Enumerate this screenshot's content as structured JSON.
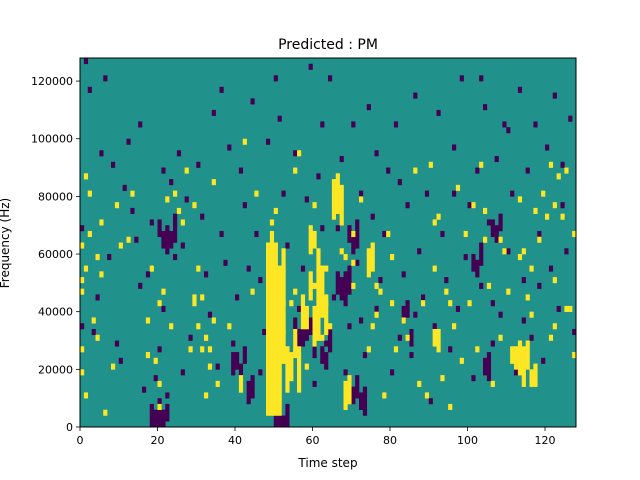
{
  "chart_data": {
    "type": "heatmap",
    "title": "Predicted : PM",
    "xlabel": "Time step",
    "ylabel": "Frequency (Hz)",
    "xlim": [
      0,
      128
    ],
    "ylim": [
      0,
      128000
    ],
    "x_ticks": [
      0,
      20,
      40,
      60,
      80,
      100,
      120
    ],
    "y_ticks": [
      0,
      20000,
      40000,
      60000,
      80000,
      100000,
      120000
    ],
    "y_tick_labels": [
      "0",
      "20000",
      "40000",
      "60000",
      "80000",
      "100000",
      "120000"
    ],
    "grid": false,
    "legend": "none",
    "colormap": "viridis",
    "values": [
      -1,
      0,
      1
    ],
    "colors": {
      "-1": "#440154",
      "0": "#21918c",
      "1": "#fde725"
    },
    "background_value": 0,
    "n_time_steps": 128,
    "n_frequency_bins": 64,
    "bin_width_hz": 2000,
    "cells_high": [
      [
        0,
        9
      ],
      [
        0,
        13
      ],
      [
        0,
        23
      ],
      [
        0,
        25
      ],
      [
        0,
        31
      ],
      [
        1,
        43
      ],
      [
        1,
        27
      ],
      [
        1,
        5
      ],
      [
        2,
        40
      ],
      [
        2,
        33
      ],
      [
        3,
        18
      ],
      [
        4,
        29
      ],
      [
        4,
        15
      ],
      [
        5,
        35
      ],
      [
        5,
        26
      ],
      [
        6,
        2
      ],
      [
        8,
        10
      ],
      [
        9,
        38
      ],
      [
        10,
        31
      ],
      [
        12,
        32
      ],
      [
        13,
        40
      ],
      [
        17,
        12
      ],
      [
        17,
        18
      ],
      [
        18,
        27
      ],
      [
        19,
        11
      ],
      [
        20,
        21
      ],
      [
        20,
        7
      ],
      [
        20,
        3
      ],
      [
        21,
        23
      ],
      [
        22,
        39
      ],
      [
        23,
        17
      ],
      [
        24,
        40
      ],
      [
        25,
        37
      ],
      [
        26,
        35
      ],
      [
        27,
        44
      ],
      [
        28,
        13
      ],
      [
        29,
        38
      ],
      [
        29,
        22
      ],
      [
        29,
        21
      ],
      [
        30,
        17
      ],
      [
        30,
        27
      ],
      [
        31,
        22
      ],
      [
        31,
        13
      ],
      [
        32,
        15
      ],
      [
        32,
        5
      ],
      [
        33,
        13
      ],
      [
        33,
        10
      ],
      [
        34,
        42
      ],
      [
        34,
        18
      ],
      [
        35,
        7
      ],
      [
        38,
        17
      ],
      [
        42,
        49
      ],
      [
        44,
        23
      ],
      [
        45,
        40
      ],
      [
        49,
        35
      ],
      [
        50,
        37
      ],
      [
        50,
        31
      ],
      [
        52,
        21
      ],
      [
        52,
        16
      ],
      [
        53,
        13
      ],
      [
        54,
        21
      ],
      [
        55,
        23
      ],
      [
        55,
        44
      ],
      [
        56,
        47
      ],
      [
        58,
        10
      ],
      [
        60,
        38
      ],
      [
        60,
        31
      ],
      [
        60,
        24
      ],
      [
        62,
        15
      ],
      [
        63,
        21
      ],
      [
        63,
        27
      ],
      [
        64,
        17
      ],
      [
        66,
        40
      ],
      [
        67,
        30
      ],
      [
        68,
        29
      ],
      [
        70,
        33
      ],
      [
        70,
        28
      ],
      [
        70,
        24
      ],
      [
        72,
        39
      ],
      [
        74,
        13
      ],
      [
        75,
        17
      ],
      [
        76,
        19
      ],
      [
        76,
        24
      ],
      [
        77,
        23
      ],
      [
        78,
        5
      ],
      [
        79,
        33
      ],
      [
        80,
        29
      ],
      [
        80,
        21
      ],
      [
        81,
        13
      ],
      [
        83,
        18
      ],
      [
        84,
        15
      ],
      [
        86,
        44
      ],
      [
        87,
        7
      ],
      [
        88,
        21
      ],
      [
        89,
        5
      ],
      [
        90,
        45
      ],
      [
        91,
        35
      ],
      [
        91,
        27
      ],
      [
        92,
        36
      ],
      [
        93,
        8
      ],
      [
        94,
        23
      ],
      [
        95,
        21
      ],
      [
        95,
        3
      ],
      [
        96,
        17
      ],
      [
        97,
        41
      ],
      [
        98,
        11
      ],
      [
        99,
        33
      ],
      [
        100,
        21
      ],
      [
        101,
        38
      ],
      [
        102,
        13
      ],
      [
        103,
        45
      ],
      [
        104,
        32
      ],
      [
        104,
        37
      ],
      [
        105,
        24
      ],
      [
        106,
        7
      ],
      [
        108,
        15
      ],
      [
        108,
        32
      ],
      [
        109,
        30
      ],
      [
        110,
        23
      ],
      [
        113,
        39
      ],
      [
        113,
        29
      ],
      [
        114,
        30
      ],
      [
        115,
        22
      ],
      [
        116,
        19
      ],
      [
        116,
        27
      ],
      [
        117,
        37
      ],
      [
        118,
        32
      ],
      [
        119,
        40
      ],
      [
        120,
        36
      ],
      [
        121,
        15
      ],
      [
        121,
        45
      ],
      [
        122,
        17
      ],
      [
        122,
        25
      ],
      [
        122,
        38
      ],
      [
        123,
        43
      ],
      [
        124,
        36
      ],
      [
        125,
        44
      ],
      [
        125,
        20
      ],
      [
        126,
        20
      ],
      [
        127,
        12
      ],
      [
        127,
        33
      ]
    ],
    "runs_high": [
      [
        48,
        2,
        31
      ],
      [
        49,
        2,
        33
      ],
      [
        50,
        2,
        31
      ],
      [
        51,
        2,
        27
      ],
      [
        52,
        11,
        30
      ],
      [
        53,
        6,
        12
      ],
      [
        54,
        8,
        12
      ],
      [
        55,
        12,
        16
      ],
      [
        56,
        6,
        13
      ],
      [
        57,
        17,
        22
      ],
      [
        58,
        17,
        20
      ],
      [
        59,
        22,
        26
      ],
      [
        60,
        14,
        20
      ],
      [
        61,
        15,
        30
      ],
      [
        62,
        19,
        27
      ],
      [
        63,
        16,
        22
      ],
      [
        65,
        36,
        42
      ],
      [
        66,
        37,
        43
      ],
      [
        67,
        35,
        41
      ],
      [
        50,
        14,
        16
      ],
      [
        49,
        18,
        20
      ],
      [
        91,
        14,
        16
      ],
      [
        92,
        13,
        16
      ],
      [
        111,
        11,
        13
      ],
      [
        112,
        10,
        13
      ],
      [
        113,
        9,
        14
      ],
      [
        114,
        7,
        13
      ],
      [
        115,
        10,
        14
      ],
      [
        74,
        26,
        30
      ],
      [
        75,
        27,
        31
      ],
      [
        59,
        30,
        34
      ],
      [
        60,
        32,
        33
      ],
      [
        68,
        3,
        7
      ],
      [
        69,
        4,
        8
      ],
      [
        116,
        7,
        9
      ],
      [
        117,
        7,
        10
      ],
      [
        41,
        6,
        8
      ]
    ],
    "cells_low": [
      [
        0,
        17
      ],
      [
        0,
        34
      ],
      [
        1,
        63
      ],
      [
        2,
        58
      ],
      [
        3,
        16
      ],
      [
        5,
        47
      ],
      [
        6,
        60
      ],
      [
        10,
        11
      ],
      [
        11,
        41
      ],
      [
        12,
        49
      ],
      [
        13,
        37
      ],
      [
        14,
        32
      ],
      [
        15,
        24
      ],
      [
        16,
        6
      ],
      [
        17,
        26
      ],
      [
        18,
        35
      ],
      [
        19,
        8
      ],
      [
        20,
        13
      ],
      [
        21,
        20
      ],
      [
        22,
        5
      ],
      [
        23,
        42
      ],
      [
        24,
        29
      ],
      [
        25,
        47
      ],
      [
        26,
        31
      ],
      [
        27,
        39
      ],
      [
        28,
        15
      ],
      [
        30,
        45
      ],
      [
        32,
        26
      ],
      [
        33,
        19
      ],
      [
        34,
        54
      ],
      [
        35,
        10
      ],
      [
        36,
        33
      ],
      [
        37,
        28
      ],
      [
        38,
        48
      ],
      [
        39,
        14
      ],
      [
        40,
        22
      ],
      [
        41,
        44
      ],
      [
        42,
        38
      ],
      [
        43,
        27
      ],
      [
        44,
        56
      ],
      [
        45,
        33
      ],
      [
        46,
        9
      ],
      [
        47,
        16
      ],
      [
        48,
        49
      ],
      [
        50,
        60
      ],
      [
        51,
        53
      ],
      [
        52,
        40
      ],
      [
        53,
        31
      ],
      [
        54,
        12
      ],
      [
        55,
        47
      ],
      [
        56,
        20
      ],
      [
        57,
        27
      ],
      [
        58,
        39
      ],
      [
        59,
        62
      ],
      [
        60,
        7
      ],
      [
        61,
        43
      ],
      [
        62,
        52
      ],
      [
        63,
        14
      ],
      [
        64,
        60
      ],
      [
        65,
        22
      ],
      [
        66,
        34
      ],
      [
        67,
        46
      ],
      [
        68,
        9
      ],
      [
        69,
        17
      ],
      [
        70,
        52
      ],
      [
        71,
        28
      ],
      [
        72,
        40
      ],
      [
        73,
        12
      ],
      [
        74,
        55
      ],
      [
        75,
        36
      ],
      [
        76,
        20
      ],
      [
        77,
        25
      ],
      [
        78,
        33
      ],
      [
        79,
        44
      ],
      [
        80,
        9
      ],
      [
        81,
        52
      ],
      [
        82,
        15
      ],
      [
        83,
        26
      ],
      [
        84,
        38
      ],
      [
        85,
        12
      ],
      [
        86,
        57
      ],
      [
        87,
        30
      ],
      [
        88,
        22
      ],
      [
        89,
        40
      ],
      [
        90,
        4
      ],
      [
        91,
        17
      ],
      [
        92,
        54
      ],
      [
        93,
        33
      ],
      [
        94,
        25
      ],
      [
        95,
        13
      ],
      [
        96,
        48
      ],
      [
        97,
        20
      ],
      [
        98,
        60
      ],
      [
        99,
        29
      ],
      [
        100,
        38
      ],
      [
        101,
        8
      ],
      [
        102,
        44
      ],
      [
        103,
        24
      ],
      [
        104,
        55
      ],
      [
        105,
        35
      ],
      [
        106,
        14
      ],
      [
        107,
        46
      ],
      [
        108,
        19
      ],
      [
        109,
        52
      ],
      [
        110,
        30
      ],
      [
        111,
        40
      ],
      [
        112,
        9
      ],
      [
        113,
        58
      ],
      [
        114,
        25
      ],
      [
        115,
        44
      ],
      [
        116,
        15
      ],
      [
        117,
        52
      ],
      [
        118,
        33
      ],
      [
        119,
        11
      ],
      [
        120,
        48
      ],
      [
        121,
        27
      ],
      [
        122,
        57
      ],
      [
        123,
        20
      ],
      [
        124,
        38
      ],
      [
        125,
        30
      ],
      [
        126,
        53
      ],
      [
        127,
        16
      ],
      [
        4,
        22
      ],
      [
        7,
        29
      ],
      [
        8,
        45
      ],
      [
        9,
        14
      ],
      [
        15,
        52
      ],
      [
        21,
        44
      ],
      [
        26,
        9
      ],
      [
        31,
        36
      ],
      [
        36,
        58
      ],
      [
        46,
        25
      ],
      [
        58,
        18
      ],
      [
        62,
        34
      ],
      [
        72,
        18
      ],
      [
        76,
        47
      ],
      [
        82,
        42
      ],
      [
        86,
        19
      ],
      [
        96,
        40
      ],
      [
        103,
        60
      ],
      [
        106,
        21
      ],
      [
        110,
        51
      ],
      [
        114,
        18
      ],
      [
        118,
        24
      ],
      [
        124,
        45
      ]
    ],
    "runs_low": [
      [
        18,
        0,
        3
      ],
      [
        19,
        0,
        2
      ],
      [
        20,
        0,
        4
      ],
      [
        21,
        0,
        2
      ],
      [
        22,
        1,
        3
      ],
      [
        55,
        14,
        18
      ],
      [
        56,
        13,
        16
      ],
      [
        57,
        14,
        19
      ],
      [
        58,
        15,
        17
      ],
      [
        59,
        16,
        18
      ],
      [
        60,
        12,
        14
      ],
      [
        61,
        17,
        19
      ],
      [
        62,
        11,
        13
      ],
      [
        63,
        10,
        12
      ],
      [
        64,
        13,
        16
      ],
      [
        66,
        23,
        26
      ],
      [
        67,
        22,
        25
      ],
      [
        68,
        21,
        26
      ],
      [
        69,
        23,
        27
      ],
      [
        70,
        4,
        6
      ],
      [
        71,
        5,
        8
      ],
      [
        72,
        3,
        5
      ],
      [
        73,
        2,
        6
      ],
      [
        39,
        9,
        12
      ],
      [
        40,
        10,
        12
      ],
      [
        41,
        9,
        10
      ],
      [
        42,
        11,
        13
      ],
      [
        43,
        4,
        7
      ],
      [
        44,
        5,
        8
      ],
      [
        49,
        3,
        5
      ],
      [
        50,
        0,
        2
      ],
      [
        51,
        0,
        3
      ],
      [
        52,
        0,
        1
      ],
      [
        53,
        0,
        3
      ],
      [
        83,
        18,
        20
      ],
      [
        84,
        19,
        21
      ],
      [
        85,
        14,
        16
      ],
      [
        101,
        27,
        29
      ],
      [
        102,
        26,
        28
      ],
      [
        103,
        28,
        31
      ],
      [
        104,
        9,
        11
      ],
      [
        105,
        8,
        12
      ],
      [
        106,
        33,
        35
      ],
      [
        107,
        32,
        34
      ],
      [
        108,
        34,
        36
      ],
      [
        20,
        33,
        35
      ],
      [
        21,
        31,
        33
      ],
      [
        22,
        30,
        34
      ],
      [
        23,
        31,
        33
      ],
      [
        24,
        32,
        36
      ],
      [
        69,
        32,
        34
      ],
      [
        70,
        30,
        33
      ],
      [
        71,
        31,
        35
      ]
    ]
  }
}
